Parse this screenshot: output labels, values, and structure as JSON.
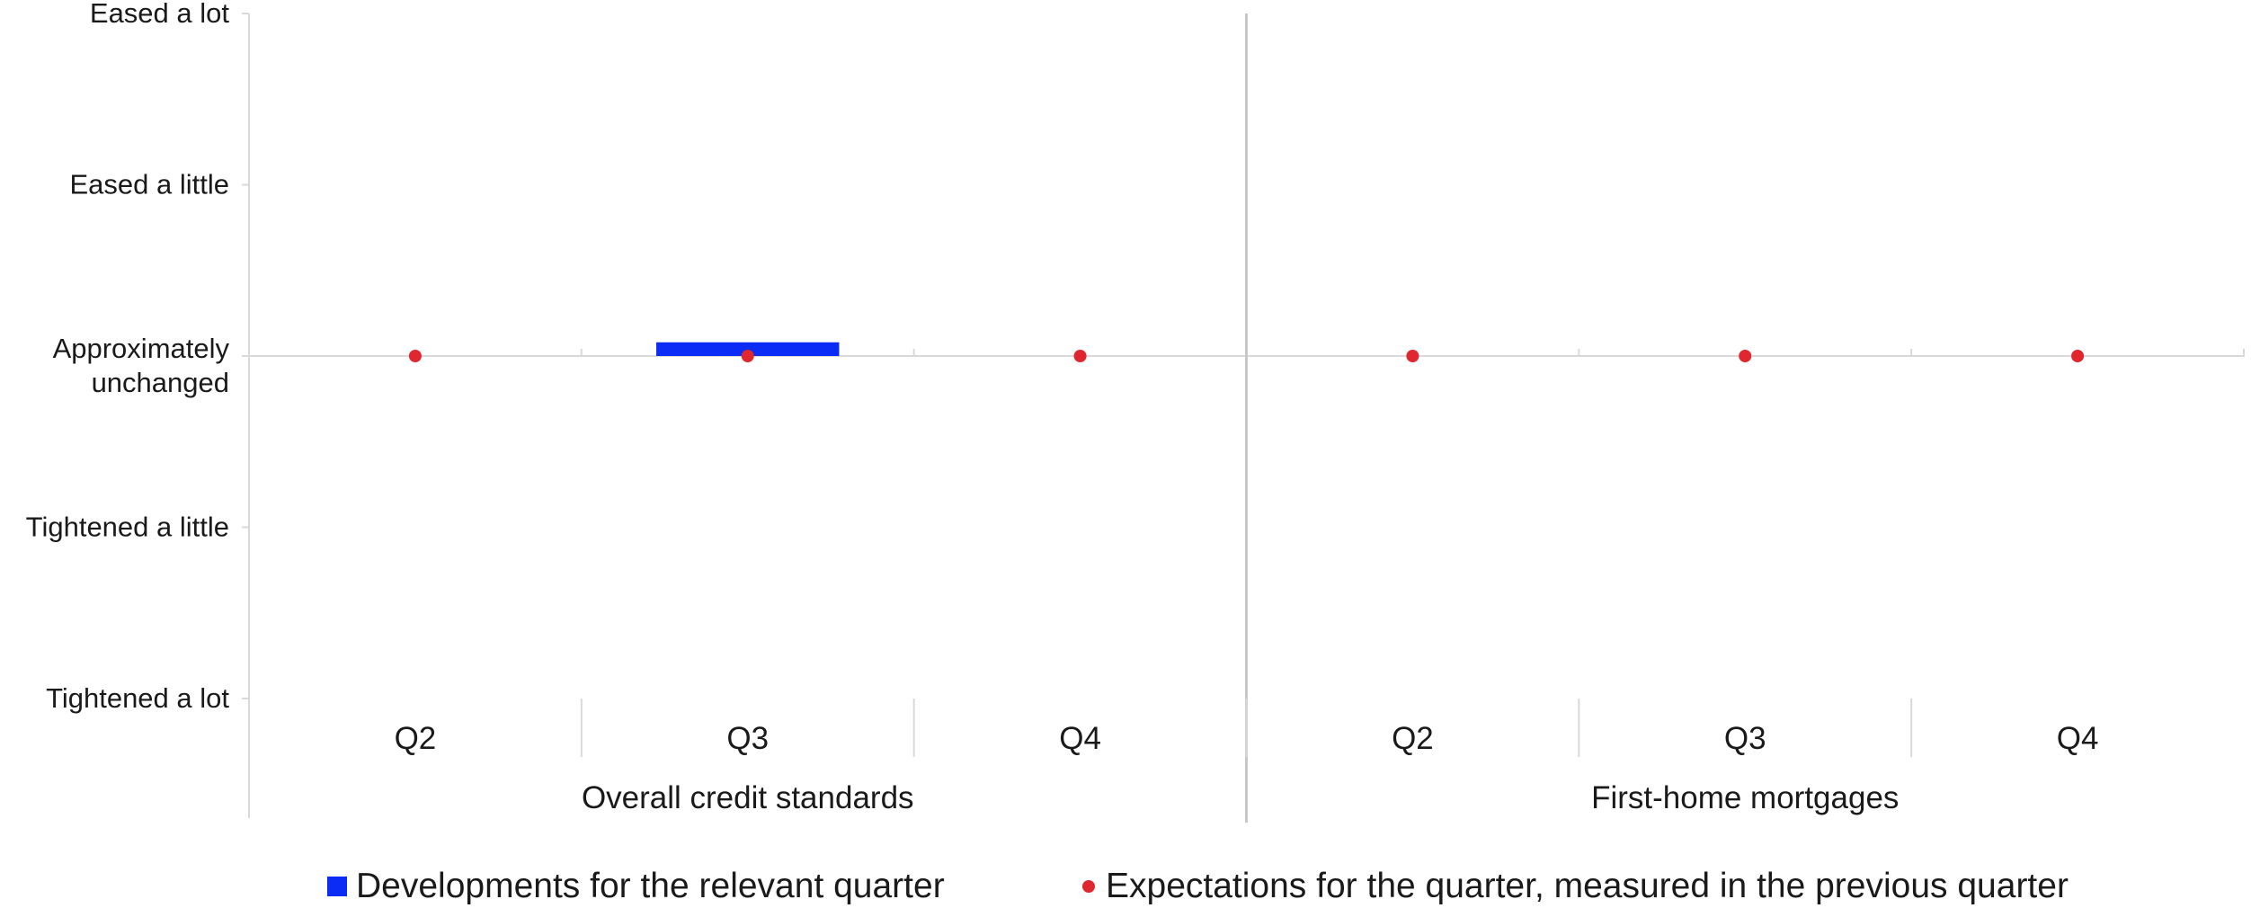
{
  "chart_data": {
    "type": "bar",
    "y_scale_labels": [
      "Tightened a lot",
      "Tightened a little",
      "Approximately unchanged",
      "Eased a little",
      "Eased a lot"
    ],
    "ylim": [
      -2,
      2
    ],
    "groups": [
      {
        "name": "Overall credit standards",
        "categories": [
          "Q2",
          "Q3",
          "Q4"
        ]
      },
      {
        "name": "First-home mortgages",
        "categories": [
          "Q2",
          "Q3",
          "Q4"
        ]
      }
    ],
    "series": [
      {
        "name": "Developments for the relevant quarter",
        "kind": "bar",
        "color": "#0a2cf5",
        "values": [
          [
            null,
            0.08,
            null
          ],
          [
            null,
            null,
            null
          ]
        ]
      },
      {
        "name": "Expectations for the quarter, measured in the previous quarter",
        "kind": "dot",
        "color": "#e0262e",
        "values": [
          [
            0,
            0,
            0
          ],
          [
            0,
            0,
            0
          ]
        ]
      }
    ],
    "legend_position": "bottom",
    "grid": false
  }
}
